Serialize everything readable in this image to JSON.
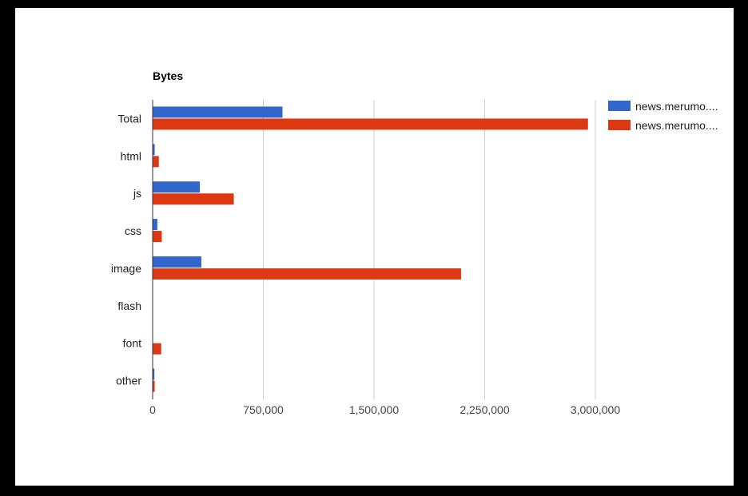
{
  "chart_data": {
    "type": "bar",
    "orientation": "horizontal",
    "title": "Bytes",
    "categories": [
      "Total",
      "html",
      "js",
      "css",
      "image",
      "flash",
      "font",
      "other"
    ],
    "series": [
      {
        "name": "news.merumo....",
        "color": "#3366cc",
        "values": [
          880000,
          14000,
          320000,
          32000,
          330000,
          0,
          0,
          12000
        ]
      },
      {
        "name": "news.merumo....",
        "color": "#dc3912",
        "values": [
          2950000,
          42000,
          550000,
          62000,
          2090000,
          0,
          58000,
          14000
        ]
      }
    ],
    "x_ticks": [
      0,
      750000,
      1500000,
      2250000,
      3000000
    ],
    "x_tick_labels": [
      "0",
      "750,000",
      "1,500,000",
      "2,250,000",
      "3,000,000"
    ],
    "xlim": [
      0,
      3000000
    ],
    "grid": true,
    "legend_position": "right"
  }
}
